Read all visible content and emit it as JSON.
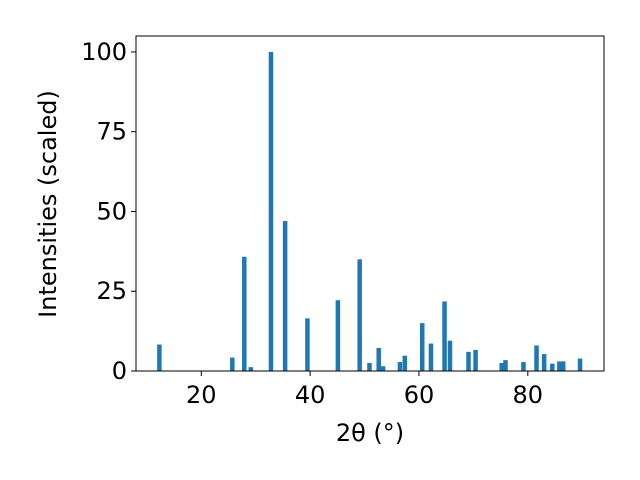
{
  "chart_data": {
    "type": "bar",
    "title": "",
    "xlabel": "2θ (°)",
    "ylabel": "Intensities (scaled)",
    "xlim": [
      8,
      94
    ],
    "ylim": [
      0,
      105
    ],
    "x_ticks": [
      20,
      40,
      60,
      80
    ],
    "y_ticks": [
      0,
      25,
      50,
      75,
      100
    ],
    "grid": false,
    "legend": "none",
    "bar_color": "#1f77b4",
    "series": [
      {
        "x": [
          12.3,
          25.7,
          27.9,
          29.1,
          32.8,
          35.4,
          39.5,
          45.1,
          49.1,
          50.9,
          52.6,
          53.4,
          56.5,
          57.4,
          60.6,
          62.2,
          64.7,
          65.7,
          69.1,
          70.4,
          75.2,
          75.9,
          79.2,
          81.6,
          83.0,
          84.5,
          85.8,
          86.5,
          89.6
        ],
        "values": [
          8.3,
          4.2,
          35.8,
          1.2,
          100,
          47,
          16.5,
          22.2,
          35,
          2.5,
          7.2,
          1.5,
          2.8,
          4.8,
          15,
          8.6,
          21.8,
          9.5,
          6.0,
          6.6,
          2.5,
          3.4,
          2.8,
          8.0,
          5.3,
          2.3,
          3.0,
          3.0,
          3.9
        ]
      }
    ]
  }
}
